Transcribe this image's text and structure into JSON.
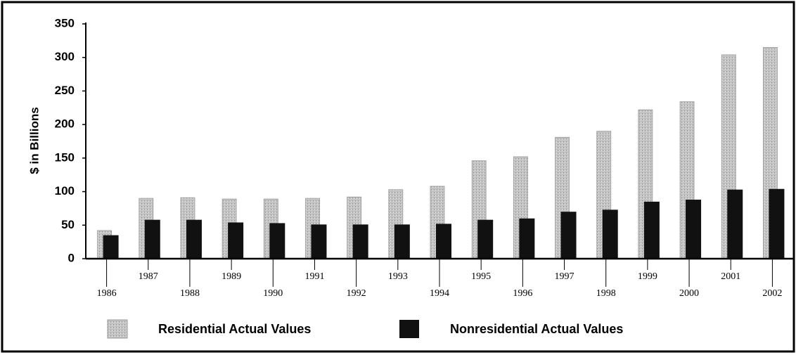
{
  "chart_data": {
    "type": "bar",
    "y_label": "$ in Billions",
    "categories": [
      "1986",
      "1987",
      "1988",
      "1989",
      "1990",
      "1991",
      "1992",
      "1993",
      "1994",
      "1995",
      "1996",
      "1997",
      "1998",
      "1999",
      "2000",
      "2001",
      "2002"
    ],
    "series": [
      {
        "name": "Residential Actual Values",
        "color": "#c4c4c4",
        "values": [
          42,
          90,
          91,
          89,
          89,
          90,
          92,
          103,
          108,
          146,
          152,
          181,
          190,
          222,
          234,
          304,
          315
        ]
      },
      {
        "name": "Nonresidential Actual Values",
        "color": "#111111",
        "values": [
          35,
          58,
          58,
          54,
          53,
          51,
          51,
          51,
          52,
          58,
          60,
          70,
          73,
          85,
          88,
          103,
          104
        ]
      }
    ],
    "ylim": [
      0,
      350
    ],
    "yticks": [
      0,
      50,
      100,
      150,
      200,
      250,
      300,
      350
    ],
    "grid": false,
    "legend": "bottom"
  }
}
